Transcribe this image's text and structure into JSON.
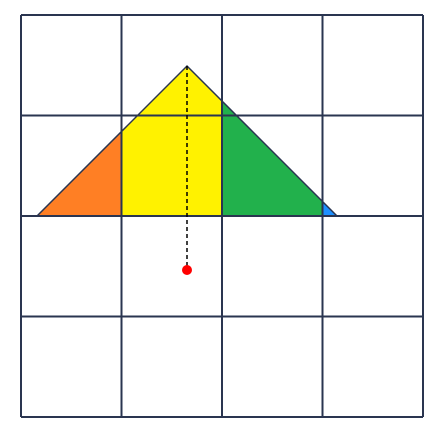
{
  "grid": {
    "columns": 4,
    "rows": 4,
    "line_color": "#2a3550"
  },
  "triangle": {
    "outline_color": "#2a3550",
    "regions": [
      {
        "name": "orange-region",
        "color": "#ff7f24"
      },
      {
        "name": "yellow-region",
        "color": "#fff200"
      },
      {
        "name": "green-region",
        "color": "#22b14c"
      },
      {
        "name": "blue-region",
        "color": "#1e90ff"
      }
    ]
  },
  "altitude": {
    "line_color": "#000000",
    "line_style": "dashed"
  },
  "point": {
    "color": "#ff0000"
  }
}
